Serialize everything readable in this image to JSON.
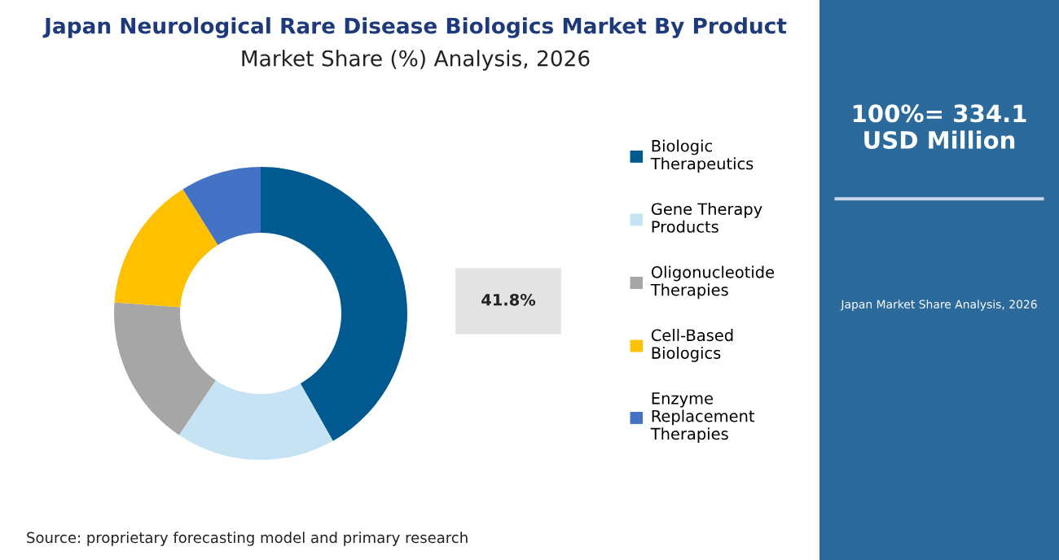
{
  "chart_data": {
    "type": "donut",
    "title": "Japan Neurological Rare Disease Biologics Market By Product",
    "subtitle": "Market Share (%) Analysis, 2026",
    "categories": [
      "Biologic Therapeutics",
      "Gene Therapy Products",
      "Oligonucleotide Therapies",
      "Cell-Based Biologics",
      "Enzyme Replacement Therapies"
    ],
    "values": [
      41.8,
      17.6,
      16.8,
      14.9,
      8.9
    ],
    "colors": [
      "#005a8f",
      "#c5e3f2",
      "#a6a6a6",
      "#ffc000",
      "#4472c4"
    ],
    "value_labels": [
      "41.8%",
      null,
      null,
      null,
      null
    ],
    "legend": "right",
    "annotations": [
      "100%= 334.1 USD Million",
      "Japan Market Share Analysis, 2026",
      "Source: proprietary forecasting model and primary research"
    ]
  }
}
